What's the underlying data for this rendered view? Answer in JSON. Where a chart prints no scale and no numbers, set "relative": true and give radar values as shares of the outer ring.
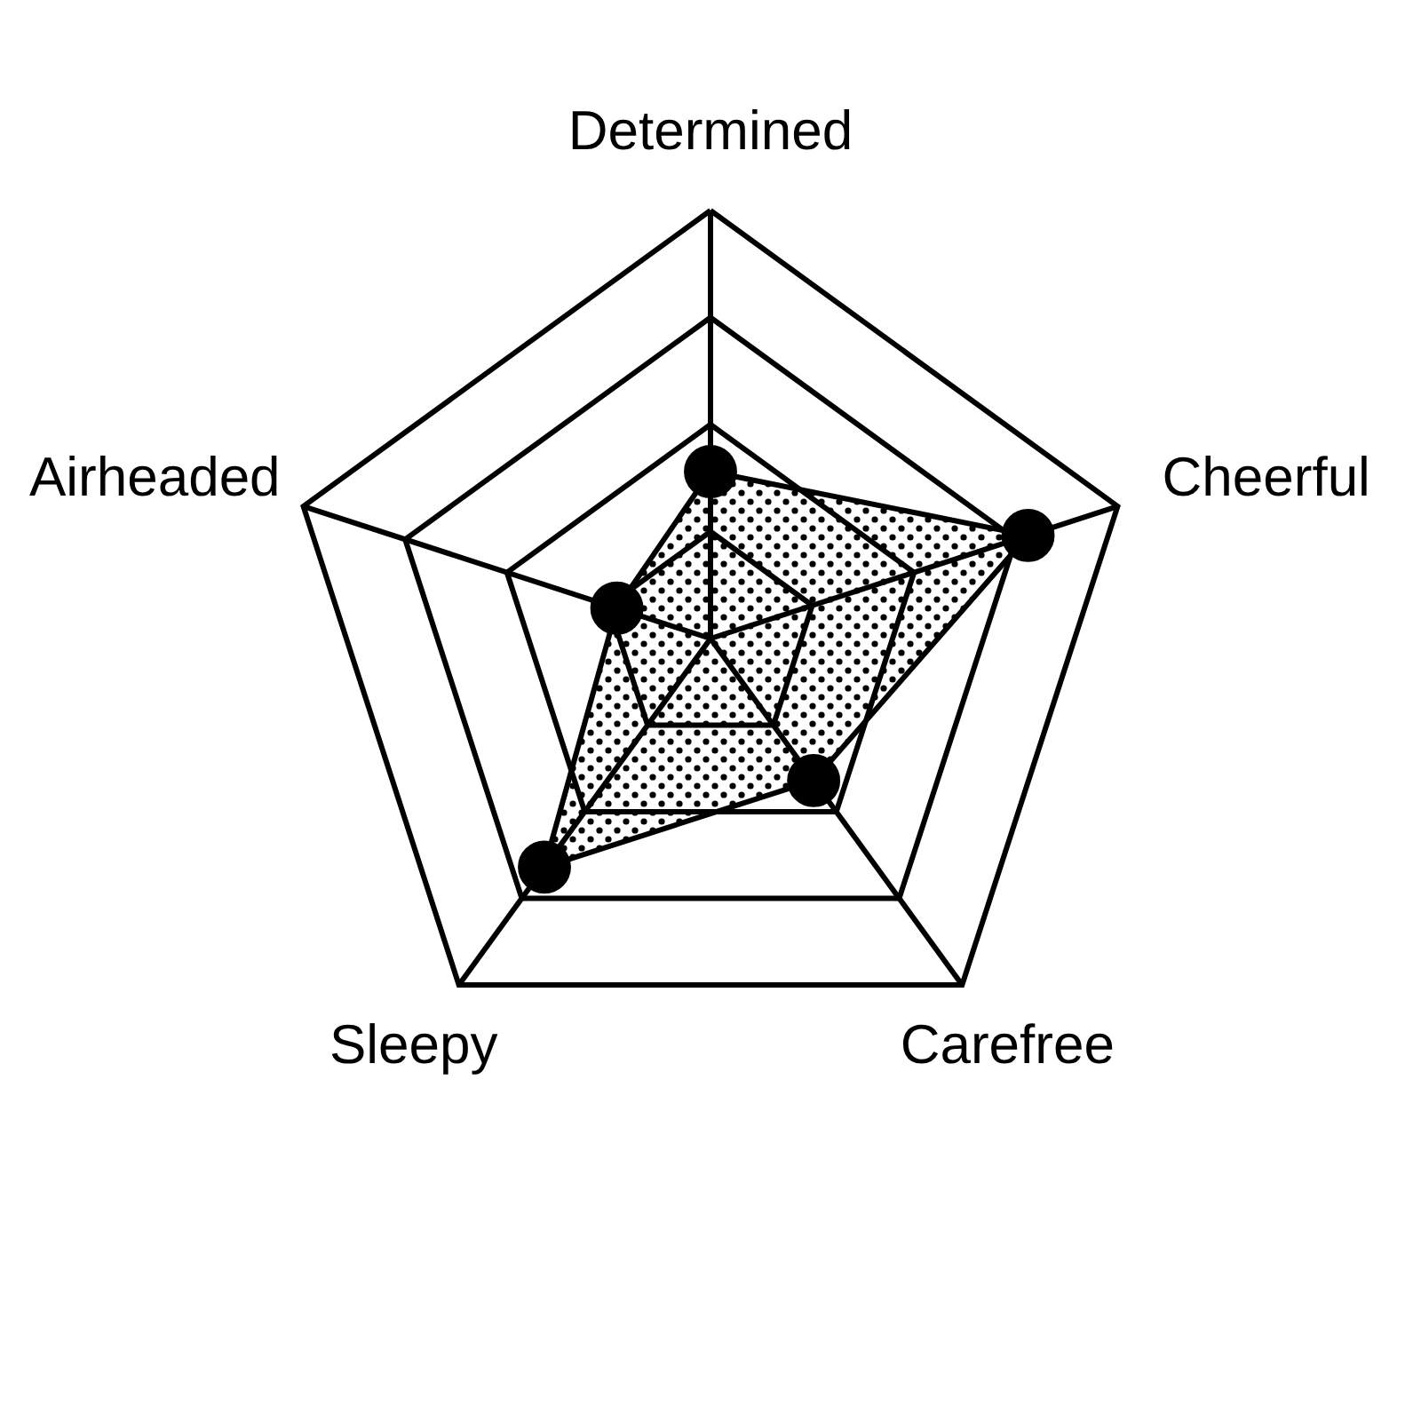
{
  "chart_data": {
    "type": "radar",
    "categories": [
      "Determined",
      "Cheerful",
      "Carefree",
      "Sleepy",
      "Airheaded"
    ],
    "series": [
      {
        "color": "#000000",
        "values": [
          0.39,
          0.78,
          0.41,
          0.66,
          0.23
        ]
      }
    ],
    "relative": true,
    "grid": true,
    "marker": "circle"
  }
}
